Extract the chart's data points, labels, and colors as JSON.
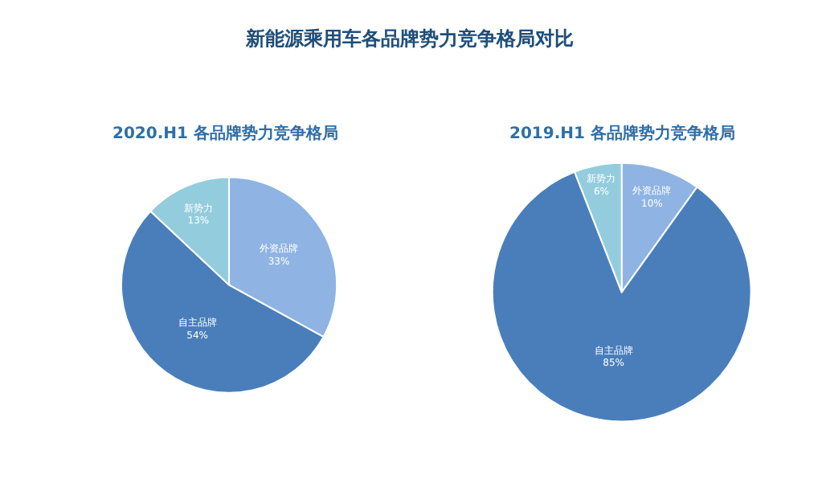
{
  "chart_data": [
    {
      "type": "pie",
      "title": "2020.H1 各品牌势力竞争格局",
      "annotations": [
        "新能源乘用车各品牌势力竞争格局对比"
      ],
      "categories": [
        "外资品牌",
        "自主品牌",
        "新势力"
      ],
      "values": [
        33,
        54,
        13
      ],
      "value_labels": [
        "33%",
        "54%",
        "13%"
      ],
      "colors": [
        "#8fb4e3",
        "#4a7ebb",
        "#93cddd"
      ],
      "legend": false
    },
    {
      "type": "pie",
      "title": "2019.H1 各品牌势力竞争格局",
      "categories": [
        "外资品牌",
        "自主品牌",
        "新势力"
      ],
      "values": [
        10,
        85,
        6
      ],
      "value_labels": [
        "10%",
        "85%",
        "6%"
      ],
      "colors": [
        "#8fb4e3",
        "#4a7ebb",
        "#93cddd"
      ],
      "legend": false
    }
  ]
}
